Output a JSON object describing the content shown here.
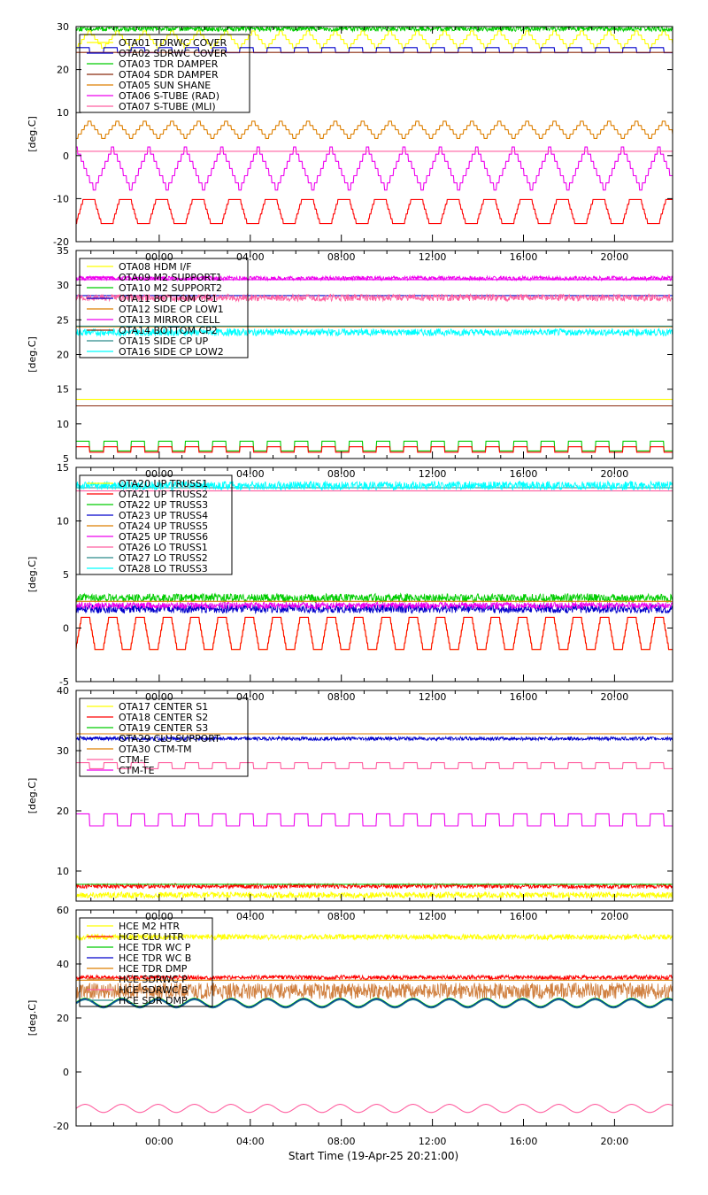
{
  "x_axis": {
    "tick_labels": [
      "00:00",
      "04:00",
      "08:00",
      "12:00",
      "16:00",
      "20:00"
    ],
    "tick_hours": [
      3.65,
      7.65,
      11.65,
      15.65,
      19.65,
      23.65
    ],
    "range_hours": [
      0,
      26.2
    ],
    "label": "Start Time (19-Apr-25 20:21:00)"
  },
  "colors": {
    "yellow": "#ffff00",
    "red": "#ff0000",
    "green": "#00cc00",
    "blue": "#0000cc",
    "orange": "#dd7f00",
    "magenta": "#ee00ee",
    "pink": "#ff5fa0",
    "dark_red": "#8b2a0f",
    "teal": "#2a8a8a",
    "cyan": "#00ffff",
    "tan": "#d08040"
  },
  "chart_data": [
    {
      "type": "line",
      "ylabel": "[deg.C]",
      "ylim": [
        -20,
        30
      ],
      "yticks": [
        -20,
        -10,
        0,
        10,
        20,
        30
      ],
      "legend_position": "top-left",
      "series": [
        {
          "name": "OTA01 TDRWC COVER",
          "color": "yellow",
          "shape": "saw",
          "level": 27,
          "amp": 2,
          "period": 1.2
        },
        {
          "name": "OTA02 SDRWC COVER",
          "color": "blue",
          "shape": "square",
          "level": 24.5,
          "amp": 0.6,
          "period": 1.2
        },
        {
          "name": "OTA03 TDR DAMPER",
          "color": "green",
          "shape": "noise",
          "level": 29.5,
          "amp": 0.6,
          "period": 0.4
        },
        {
          "name": "OTA04 SDR DAMPER",
          "color": "dark_red",
          "shape": "flat",
          "level": 24,
          "amp": 0,
          "period": 1
        },
        {
          "name": "OTA05 SUN SHANE",
          "color": "orange",
          "shape": "saw",
          "level": 6,
          "amp": 2,
          "period": 1.2
        },
        {
          "name": "OTA06 S-TUBE (RAD)",
          "color": "magenta",
          "shape": "vee",
          "level": -3,
          "amp": 5,
          "period": 1.6
        },
        {
          "name": "OTA07 S-TUBE (MLI)",
          "color": "pink",
          "shape": "flat",
          "level": 1,
          "amp": 0,
          "period": 1
        },
        {
          "name": "",
          "color": "red",
          "shape": "trap",
          "level": -13,
          "amp": 2.8,
          "period": 1.6
        }
      ]
    },
    {
      "type": "line",
      "ylabel": "[deg.C]",
      "ylim": [
        5,
        35
      ],
      "yticks": [
        5,
        10,
        15,
        20,
        25,
        30,
        35
      ],
      "legend_position": "top-left",
      "series": [
        {
          "name": "OTA08 HDM I/F",
          "color": "yellow",
          "shape": "flat",
          "level": 13.5,
          "amp": 0,
          "period": 1
        },
        {
          "name": "OTA09 M2 SUPPORT1",
          "color": "magenta",
          "shape": "noise",
          "level": 31,
          "amp": 0.3,
          "period": 0.3
        },
        {
          "name": "OTA10 M2 SUPPORT2",
          "color": "green",
          "shape": "square",
          "level": 6.8,
          "amp": 0.7,
          "period": 1.2
        },
        {
          "name": "OTA11 BOTTOM CP1",
          "color": "blue",
          "shape": "flat",
          "level": 28.5,
          "amp": 0,
          "period": 1
        },
        {
          "name": "OTA12 SIDE CP LOW1",
          "color": "orange",
          "shape": "flat",
          "level": 24,
          "amp": 0,
          "period": 1
        },
        {
          "name": "OTA13 MIRROR CELL",
          "color": "magenta",
          "shape": "flat",
          "level": 30.8,
          "amp": 0,
          "period": 1
        },
        {
          "name": "OTA14 BOTTOM CP2",
          "color": "dark_red",
          "shape": "flat",
          "level": 12.6,
          "amp": 0,
          "period": 1
        },
        {
          "name": "OTA15 SIDE CP UP",
          "color": "teal",
          "shape": "flat",
          "level": 24.1,
          "amp": 0,
          "period": 1
        },
        {
          "name": "OTA16 SIDE CP LOW2",
          "color": "cyan",
          "shape": "noise",
          "level": 23.2,
          "amp": 0.5,
          "period": 0.3
        },
        {
          "name": "",
          "color": "pink",
          "shape": "noise",
          "level": 28.2,
          "amp": 0.5,
          "period": 0.3
        },
        {
          "name": "",
          "color": "red",
          "shape": "square",
          "level": 6.3,
          "amp": 0.4,
          "period": 1.2
        }
      ]
    },
    {
      "type": "line",
      "ylabel": "[deg.C]",
      "ylim": [
        -5,
        15
      ],
      "yticks": [
        -5,
        0,
        5,
        10,
        15
      ],
      "legend_position": "top-left",
      "series": [
        {
          "name": "OTA20 UP TRUSS1",
          "color": "yellow",
          "shape": "trap",
          "level": -0.5,
          "amp": 1.5,
          "period": 1.2
        },
        {
          "name": "OTA21 UP TRUSS2",
          "color": "red",
          "shape": "trap",
          "level": -0.5,
          "amp": 1.5,
          "period": 1.2
        },
        {
          "name": "OTA22 UP TRUSS3",
          "color": "green",
          "shape": "noise",
          "level": 2.8,
          "amp": 0.4,
          "period": 0.3
        },
        {
          "name": "OTA23 UP TRUSS4",
          "color": "blue",
          "shape": "noise",
          "level": 1.8,
          "amp": 0.4,
          "period": 0.3
        },
        {
          "name": "OTA24 UP TRUSS5",
          "color": "orange",
          "shape": "flat",
          "level": 2.5,
          "amp": 0,
          "period": 1
        },
        {
          "name": "OTA25 UP TRUSS6",
          "color": "magenta",
          "shape": "noise",
          "level": 2.1,
          "amp": 0.3,
          "period": 0.3
        },
        {
          "name": "OTA26 LO TRUSS1",
          "color": "pink",
          "shape": "flat",
          "level": 12.8,
          "amp": 0,
          "period": 1
        },
        {
          "name": "OTA27 LO TRUSS2",
          "color": "teal",
          "shape": "flat",
          "level": 13.1,
          "amp": 0,
          "period": 1
        },
        {
          "name": "OTA28 LO TRUSS3",
          "color": "cyan",
          "shape": "noise",
          "level": 13.3,
          "amp": 0.4,
          "period": 0.3
        }
      ]
    },
    {
      "type": "line",
      "ylabel": "[deg.C]",
      "ylim": [
        5,
        40
      ],
      "yticks": [
        10,
        20,
        30,
        40
      ],
      "legend_position": "top-left",
      "series": [
        {
          "name": "OTA17 CENTER S1",
          "color": "yellow",
          "shape": "noise",
          "level": 6,
          "amp": 0.5,
          "period": 0.3
        },
        {
          "name": "OTA18 CENTER S2",
          "color": "red",
          "shape": "noise",
          "level": 7.5,
          "amp": 0.4,
          "period": 0.3
        },
        {
          "name": "OTA19 CENTER S3",
          "color": "green",
          "shape": "flat",
          "level": 7.8,
          "amp": 0,
          "period": 1
        },
        {
          "name": "OTA29 CLU SUPPORT",
          "color": "blue",
          "shape": "noise",
          "level": 32,
          "amp": 0.3,
          "period": 0.3
        },
        {
          "name": "OTA30 CTM-TM",
          "color": "orange",
          "shape": "flat",
          "level": 32.8,
          "amp": 0,
          "period": 1
        },
        {
          "name": "CTM-E",
          "color": "pink",
          "shape": "square",
          "level": 27.5,
          "amp": 0.5,
          "period": 1.2
        },
        {
          "name": "CTM-TE",
          "color": "magenta",
          "shape": "square",
          "level": 18.5,
          "amp": 1,
          "period": 1.2
        }
      ]
    },
    {
      "type": "line",
      "ylabel": "[deg.C]",
      "ylim": [
        -20,
        60
      ],
      "yticks": [
        -20,
        0,
        20,
        40,
        60
      ],
      "legend_position": "top-left",
      "series": [
        {
          "name": "HCE M2 HTR",
          "color": "yellow",
          "shape": "noise",
          "level": 50,
          "amp": 1,
          "period": 0.3
        },
        {
          "name": "HCE CLU HTR",
          "color": "red",
          "shape": "noise",
          "level": 35,
          "amp": 0.8,
          "period": 0.3
        },
        {
          "name": "HCE TDR WC P",
          "color": "green",
          "shape": "sine",
          "level": 25.8,
          "amp": 1.5,
          "period": 1.6
        },
        {
          "name": "HCE TDR WC B",
          "color": "blue",
          "shape": "sine",
          "level": 25.5,
          "amp": 1.5,
          "period": 1.6
        },
        {
          "name": "HCE TDR DMP",
          "color": "orange",
          "shape": "flat",
          "level": 34,
          "amp": 0,
          "period": 1
        },
        {
          "name": "HCE SDRWC P",
          "color": "tan",
          "shape": "noise",
          "level": 30,
          "amp": 3,
          "period": 0.3
        },
        {
          "name": "HCE SDRWC B",
          "color": "pink",
          "shape": "sine",
          "level": -13.5,
          "amp": 1.5,
          "period": 1.6
        },
        {
          "name": "HCE SDR DMP",
          "color": "teal",
          "shape": "sine",
          "level": 25.2,
          "amp": 1.5,
          "period": 1.6
        }
      ]
    }
  ]
}
